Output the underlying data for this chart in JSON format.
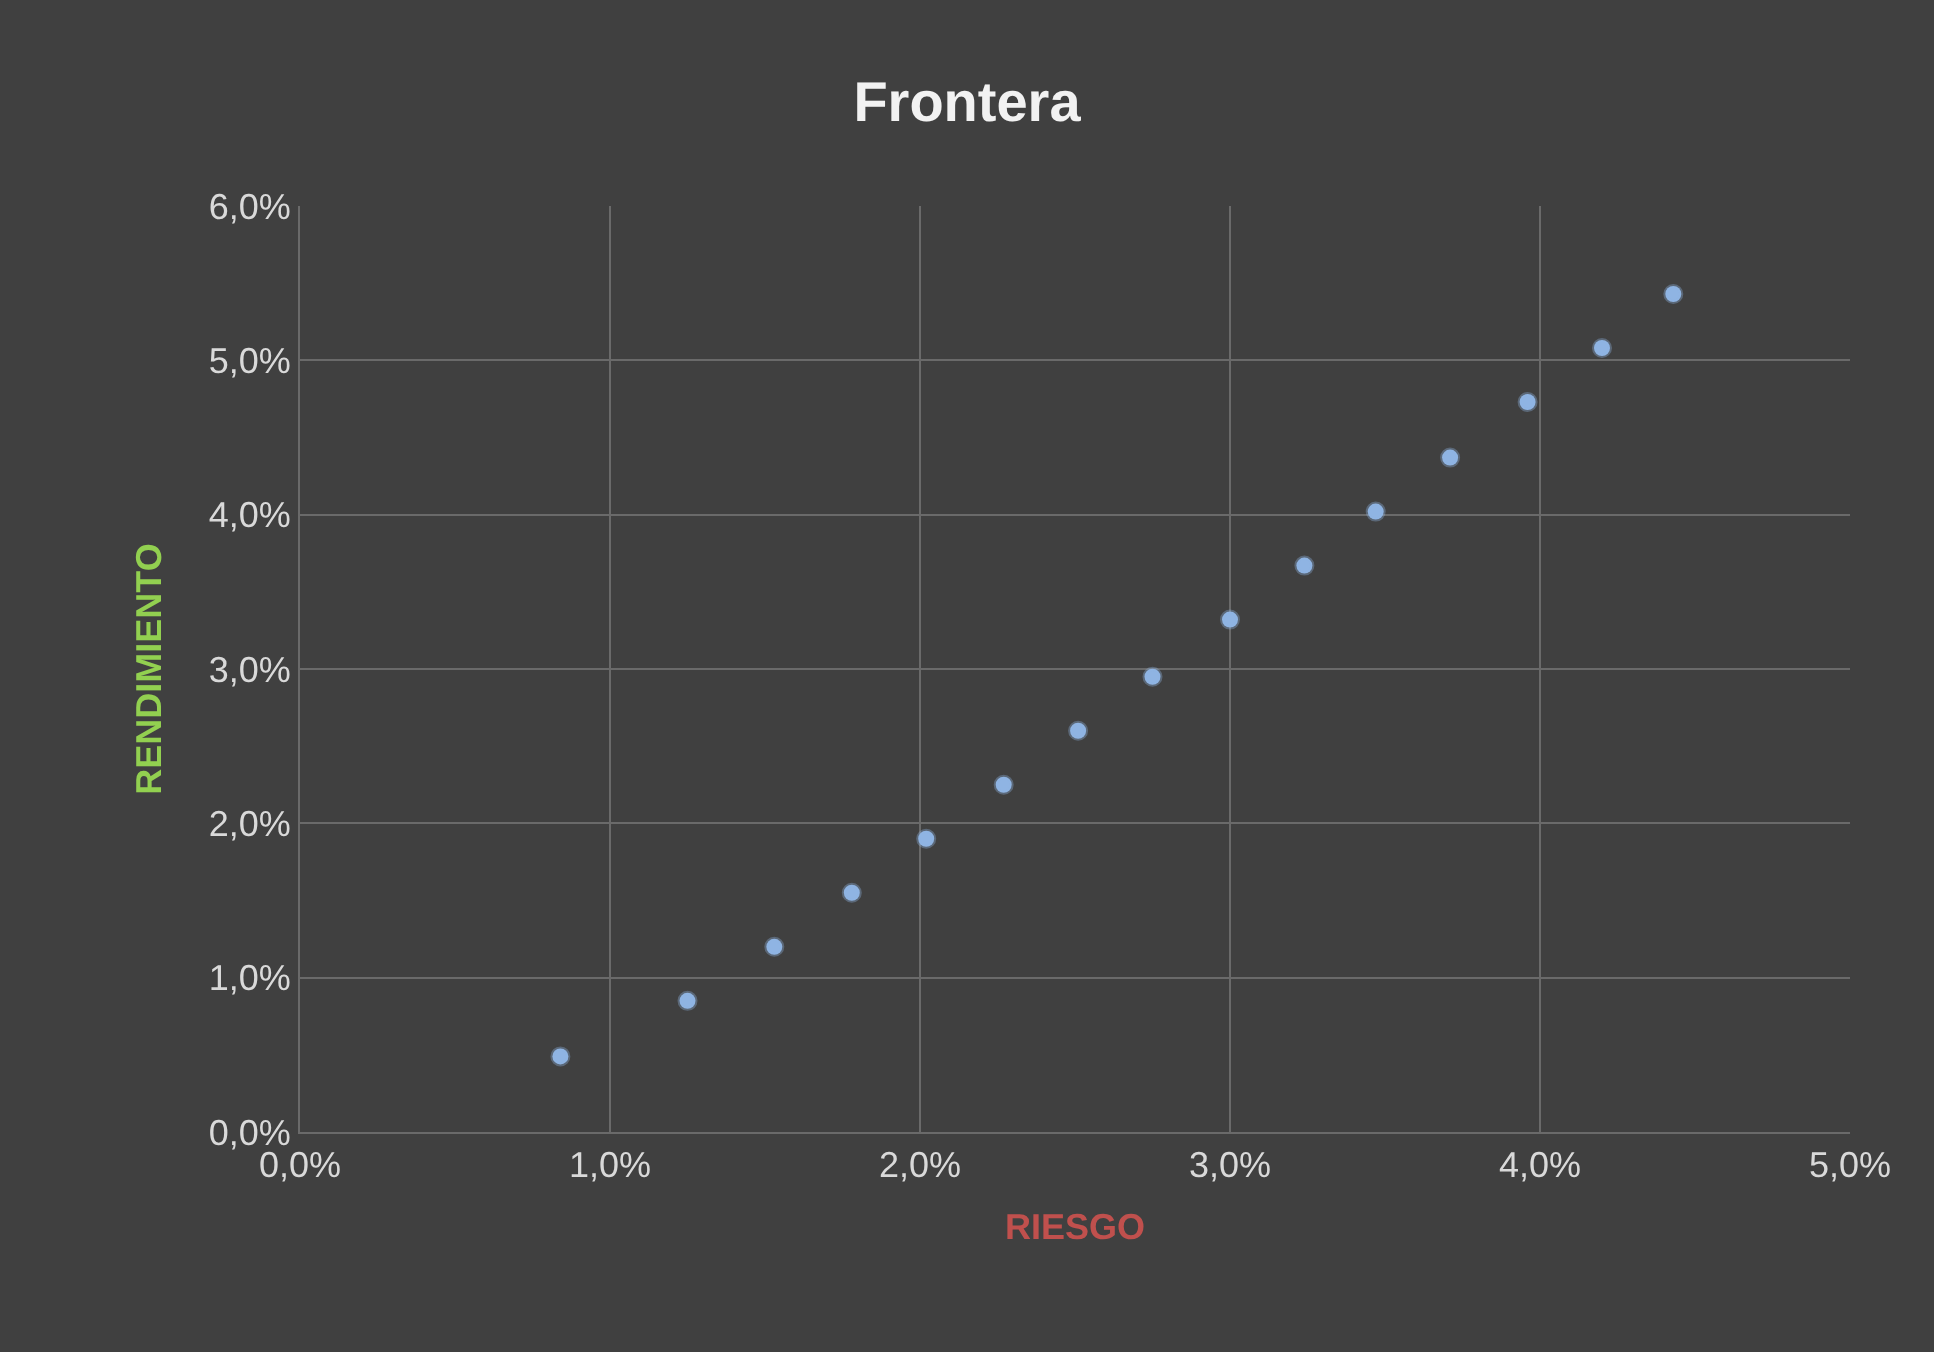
{
  "chart_data": {
    "type": "scatter",
    "title": "Frontera",
    "xlabel": "RIESGO",
    "ylabel": "RENDIMIENTO",
    "x": [
      0.84,
      1.25,
      1.53,
      1.78,
      2.02,
      2.27,
      2.51,
      2.75,
      3.0,
      3.24,
      3.47,
      3.71,
      3.96,
      4.2,
      4.43
    ],
    "series": [
      {
        "color": "#8fb4e3",
        "values": [
          0.49,
          0.85,
          1.2,
          1.55,
          1.9,
          2.25,
          2.6,
          2.95,
          3.32,
          3.67,
          4.02,
          4.37,
          4.73,
          5.08,
          5.43
        ]
      }
    ],
    "xlim": [
      0,
      5
    ],
    "ylim": [
      0,
      6
    ],
    "xticks": [
      {
        "value": 0,
        "label": "0,0%"
      },
      {
        "value": 1,
        "label": "1,0%"
      },
      {
        "value": 2,
        "label": "2,0%"
      },
      {
        "value": 3,
        "label": "3,0%"
      },
      {
        "value": 4,
        "label": "4,0%"
      },
      {
        "value": 5,
        "label": "5,0%"
      }
    ],
    "yticks": [
      {
        "value": 0,
        "label": "0,0%"
      },
      {
        "value": 1,
        "label": "1,0%"
      },
      {
        "value": 2,
        "label": "2,0%"
      },
      {
        "value": 3,
        "label": "3,0%"
      },
      {
        "value": 4,
        "label": "4,0%"
      },
      {
        "value": 5,
        "label": "5,0%"
      },
      {
        "value": 6,
        "label": "6,0%"
      }
    ],
    "grid": true,
    "marker": "circle"
  }
}
